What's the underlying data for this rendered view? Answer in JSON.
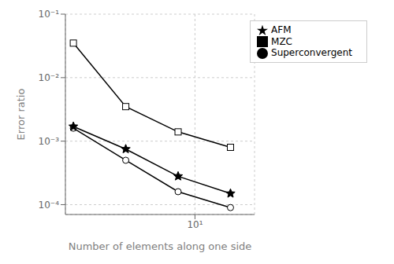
{
  "chart_data": {
    "type": "line",
    "x": [
      2,
      4,
      8,
      16
    ],
    "series": [
      {
        "name": "Superconvergent",
        "color": "black",
        "marker": "circle",
        "values": [
          0.0016,
          0.0005,
          0.00016,
          9e-05
        ]
      },
      {
        "name": "AFM",
        "color": "black",
        "marker": "star",
        "values": [
          0.0017,
          0.00075,
          0.00028,
          0.00015
        ]
      },
      {
        "name": "MZC",
        "color": "black",
        "marker": "square",
        "values": [
          0.035,
          0.0035,
          0.0014,
          0.0008
        ]
      }
    ],
    "xlabel": "Number of elements along one side",
    "ylabel": "Error ratio",
    "xlim": [
      1.8,
      22
    ],
    "ylim": [
      7e-05,
      0.1
    ],
    "xticks": [
      {
        "value": 10,
        "label": "10¹"
      }
    ],
    "yticks": [
      {
        "value": 0.0001,
        "label": "10⁻⁴"
      },
      {
        "value": 0.001,
        "label": "10⁻³"
      },
      {
        "value": 0.01,
        "label": "10⁻²"
      },
      {
        "value": 0.1,
        "label": "10⁻¹"
      }
    ],
    "log": true,
    "grid": true,
    "legend": "upper right"
  }
}
